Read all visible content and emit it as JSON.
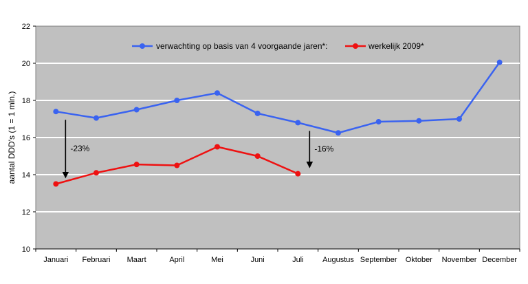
{
  "chart_data": {
    "type": "line",
    "title": "",
    "xlabel": "",
    "ylabel": "aantal DDD's (1 = 1 mln.)",
    "ylim": [
      10,
      22
    ],
    "yticks": [
      10,
      12,
      14,
      16,
      18,
      20,
      22
    ],
    "grid": true,
    "legend_position": "top",
    "plot_background": "#c0c0c0",
    "categories": [
      "Januari",
      "Februari",
      "Maart",
      "April",
      "Mei",
      "Juni",
      "Juli",
      "Augustus",
      "September",
      "Oktober",
      "November",
      "December"
    ],
    "series": [
      {
        "name": "verwachting op basis van 4 voorgaande jaren*:",
        "color": "#3a63f0",
        "values": [
          17.4,
          17.05,
          17.5,
          18.0,
          18.4,
          17.3,
          16.8,
          16.25,
          16.85,
          16.9,
          17.0,
          20.05
        ]
      },
      {
        "name": "werkelijk 2009*",
        "color": "#ee1111",
        "values": [
          13.5,
          14.1,
          14.55,
          14.5,
          15.5,
          15.0,
          14.05,
          null,
          null,
          null,
          null,
          null
        ]
      }
    ],
    "annotations": [
      {
        "text": "-23%",
        "category": "Januari",
        "from": 17.4,
        "to": 13.5
      },
      {
        "text": "-16%",
        "category": "Juli",
        "from": 16.8,
        "to": 14.05
      }
    ]
  }
}
